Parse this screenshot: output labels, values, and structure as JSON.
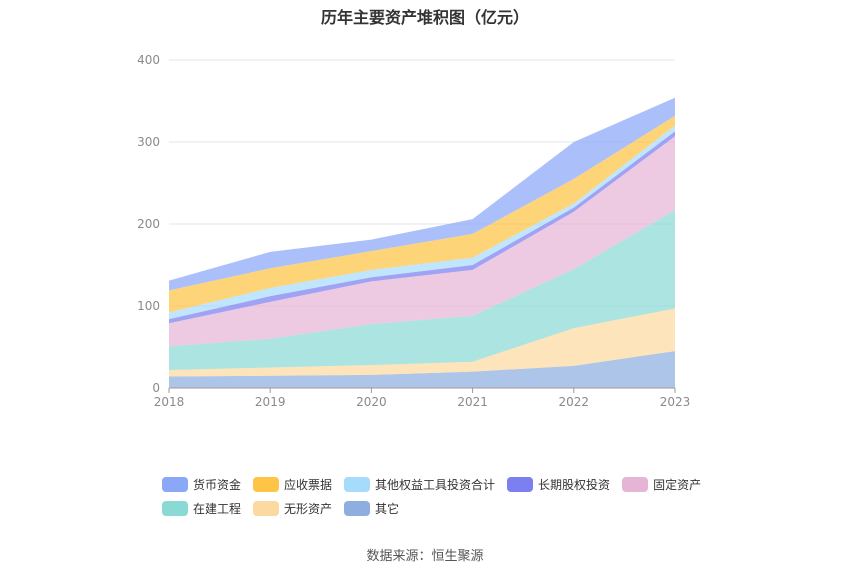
{
  "title": "历年主要资产堆积图（亿元）",
  "source": "数据来源：恒生聚源",
  "chart_data": {
    "type": "area",
    "stacked": true,
    "title": "历年主要资产堆积图（亿元）",
    "x": [
      "2018",
      "2019",
      "2020",
      "2021",
      "2022",
      "2023"
    ],
    "ylim": [
      0,
      400
    ],
    "yticks": [
      0,
      100,
      200,
      300,
      400
    ],
    "grid": true,
    "legend_position": "bottom",
    "series": [
      {
        "name": "其它",
        "color": "#8eaee0",
        "values": [
          14,
          15,
          16,
          20,
          27,
          45
        ]
      },
      {
        "name": "无形资产",
        "color": "#fcd9a0",
        "values": [
          8,
          10,
          12,
          12,
          46,
          52
        ]
      },
      {
        "name": "在建工程",
        "color": "#8ad9d5",
        "values": [
          29,
          35,
          50,
          56,
          72,
          120
        ]
      },
      {
        "name": "固定资产",
        "color": "#e6b5d6",
        "values": [
          28,
          45,
          52,
          56,
          70,
          90
        ]
      },
      {
        "name": "长期股权投资",
        "color": "#7b7ff0",
        "values": [
          5,
          7,
          5,
          6,
          5,
          6
        ]
      },
      {
        "name": "其他权益工具投资合计",
        "color": "#a6dcfb",
        "values": [
          8,
          10,
          9,
          9,
          5,
          7
        ]
      },
      {
        "name": "应收票据",
        "color": "#fdc445",
        "values": [
          27,
          24,
          23,
          29,
          30,
          12
        ]
      },
      {
        "name": "货币资金",
        "color": "#8aa7f8",
        "values": [
          12,
          20,
          14,
          18,
          45,
          22
        ]
      }
    ],
    "legend_order": [
      "货币资金",
      "应收票据",
      "其他权益工具投资合计",
      "长期股权投资",
      "固定资产",
      "在建工程",
      "无形资产",
      "其它"
    ]
  }
}
